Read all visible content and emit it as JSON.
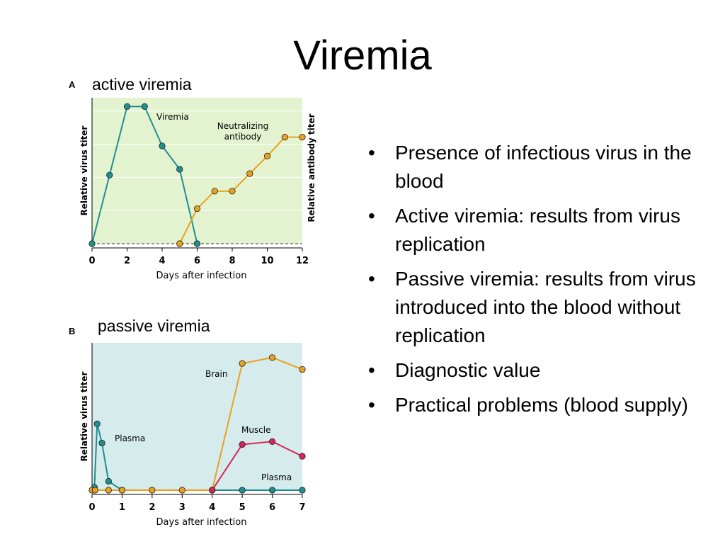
{
  "slide": {
    "title": "Viremia",
    "bullets": [
      "Presence of infectious virus in the blood",
      "Active viremia: results from virus replication",
      "Passive viremia: results from virus introduced into the blood without replication",
      "Diagnostic value",
      "Practical problems (blood supply)"
    ]
  },
  "colors": {
    "teal": "#1f8f92",
    "orange": "#e8a21f",
    "magenta": "#d7245a",
    "panel_a_bg": "#e3f3cf",
    "panel_b_bg": "#d6ebeb",
    "point_fill_teal": "#2a8a8c"
  },
  "chart_data": [
    {
      "type": "line",
      "panel": "A",
      "caption": "active viremia",
      "xlabel": "Days after infection",
      "ylabel": "Relative virus titer",
      "y2label": "Relative antibody titer",
      "xlim": [
        0,
        12
      ],
      "xticks": [
        0,
        2,
        4,
        6,
        8,
        10,
        12
      ],
      "ylim": [
        0,
        10
      ],
      "baseline": 0,
      "grid": true,
      "series": [
        {
          "name": "Viremia",
          "color": "#1f8f92",
          "x": [
            0,
            1,
            2,
            3,
            4,
            5,
            6
          ],
          "y": [
            0,
            4.7,
            9.4,
            9.4,
            6.7,
            5.1,
            0
          ]
        },
        {
          "name": "Neutralizing antibody",
          "color": "#e8a21f",
          "x": [
            5,
            6,
            7,
            8,
            9,
            10,
            11,
            12
          ],
          "y": [
            0,
            2.4,
            3.6,
            3.6,
            4.8,
            6.0,
            7.3,
            7.3
          ]
        }
      ]
    },
    {
      "type": "line",
      "panel": "B",
      "caption": "passive viremia",
      "xlabel": "Days after infection",
      "ylabel": "Relative virus titer",
      "xlim": [
        0,
        7
      ],
      "xticks": [
        0,
        1,
        2,
        3,
        4,
        5,
        6,
        7
      ],
      "ylim": [
        0,
        10
      ],
      "baseline": 0,
      "series": [
        {
          "name": "Plasma",
          "color": "#1f8f92",
          "x": [
            0,
            0.08,
            0.17,
            0.33,
            0.55,
            1,
            4,
            5,
            6,
            7
          ],
          "y": [
            0,
            0.2,
            4.5,
            3.2,
            0.6,
            0,
            0,
            0,
            0,
            0
          ]
        },
        {
          "name": "Brain",
          "color": "#e8a21f",
          "x": [
            0,
            0.1,
            0.55,
            1,
            2,
            3,
            4,
            5,
            6,
            7
          ],
          "y": [
            0,
            0,
            0,
            0,
            0,
            0,
            0,
            8.6,
            9.0,
            8.2
          ]
        },
        {
          "name": "Muscle",
          "color": "#d7245a",
          "x": [
            4,
            5,
            6,
            7
          ],
          "y": [
            0,
            3.1,
            3.3,
            2.3
          ]
        }
      ]
    }
  ]
}
